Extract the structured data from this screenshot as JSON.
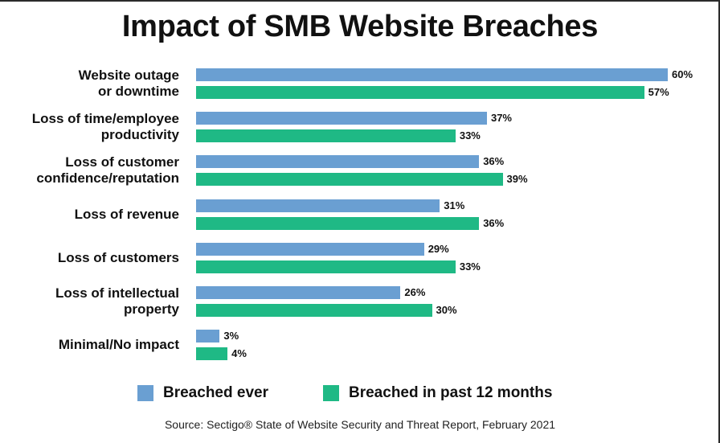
{
  "chart_data": {
    "type": "bar",
    "orientation": "horizontal",
    "title": "Impact of SMB Website Breaches",
    "categories": [
      [
        "Website outage",
        "or downtime"
      ],
      [
        "Loss of time/employee",
        "productivity"
      ],
      [
        "Loss of customer",
        "confidence/reputation"
      ],
      [
        "Loss of revenue"
      ],
      [
        "Loss of customers"
      ],
      [
        "Loss of intellectual",
        "property"
      ],
      [
        "Minimal/No impact"
      ]
    ],
    "series": [
      {
        "name": "Breached ever",
        "color": "#6a9fd2",
        "values": [
          60,
          37,
          36,
          31,
          29,
          26,
          3
        ]
      },
      {
        "name": "Breached in past 12 months",
        "color": "#1fb985",
        "values": [
          57,
          33,
          39,
          36,
          33,
          30,
          4
        ]
      }
    ],
    "value_suffix": "%",
    "xlim": [
      0,
      60
    ],
    "xlabel": "",
    "ylabel": "",
    "grid": false,
    "legend_position": "bottom",
    "source": "Source: Sectigo® State of Website Security and Threat Report, February 2021"
  }
}
